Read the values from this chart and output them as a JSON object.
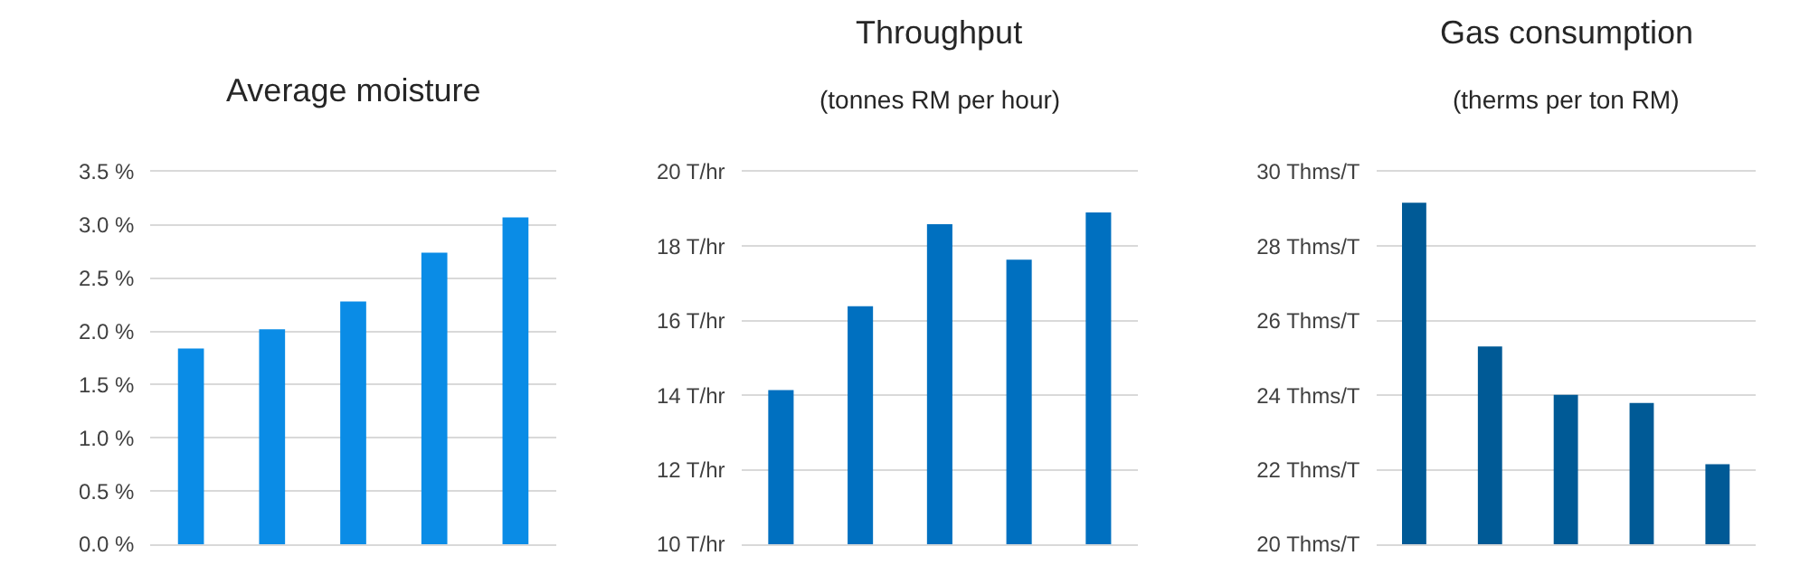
{
  "chart_data": [
    {
      "type": "bar",
      "title": "Average moisture",
      "categories": [
        null,
        null,
        null,
        null,
        null
      ],
      "values": [
        1.84,
        2.02,
        2.28,
        2.74,
        3.07
      ],
      "color": "#0a8ce6",
      "ylim": [
        0,
        3.5
      ],
      "yticks": [
        {
          "value": 0,
          "label": "0.0 %"
        },
        {
          "value": 0.5,
          "label": "0.5 %"
        },
        {
          "value": 1,
          "label": "1.0 %"
        },
        {
          "value": 1.5,
          "label": "1.5 %"
        },
        {
          "value": 2,
          "label": "2.0 %"
        },
        {
          "value": 2.5,
          "label": "2.5 %"
        },
        {
          "value": 3,
          "label": "3.0 %"
        },
        {
          "value": 3.5,
          "label": "3.5 %"
        }
      ],
      "grid": "y"
    },
    {
      "type": "bar",
      "title": "Throughput",
      "subtitle": "(tonnes RM per hour)",
      "categories": [
        null,
        null,
        null,
        null,
        null
      ],
      "values": [
        14.14,
        16.39,
        18.59,
        17.64,
        18.91
      ],
      "color": "#0070c0",
      "ylim": [
        10,
        20
      ],
      "yticks": [
        {
          "value": 10,
          "label": "10 T/hr"
        },
        {
          "value": 12,
          "label": "12 T/hr"
        },
        {
          "value": 14,
          "label": "14 T/hr"
        },
        {
          "value": 16,
          "label": "16 T/hr"
        },
        {
          "value": 18,
          "label": "18 T/hr"
        },
        {
          "value": 20,
          "label": "20 T/hr"
        }
      ],
      "grid": "y"
    },
    {
      "type": "bar",
      "title": "Gas consumption",
      "subtitle": "(therms per ton RM)",
      "categories": [
        null,
        null,
        null,
        null,
        null
      ],
      "values": [
        29.17,
        25.31,
        24.01,
        23.79,
        22.15
      ],
      "color": "#005a96",
      "ylim": [
        20,
        30
      ],
      "yticks": [
        {
          "value": 20,
          "label": "20 Thms/T"
        },
        {
          "value": 22,
          "label": "22 Thms/T"
        },
        {
          "value": 24,
          "label": "24 Thms/T"
        },
        {
          "value": 26,
          "label": "26 Thms/T"
        },
        {
          "value": 28,
          "label": "28 Thms/T"
        },
        {
          "value": 30,
          "label": "30 Thms/T"
        }
      ],
      "grid": "y"
    }
  ]
}
